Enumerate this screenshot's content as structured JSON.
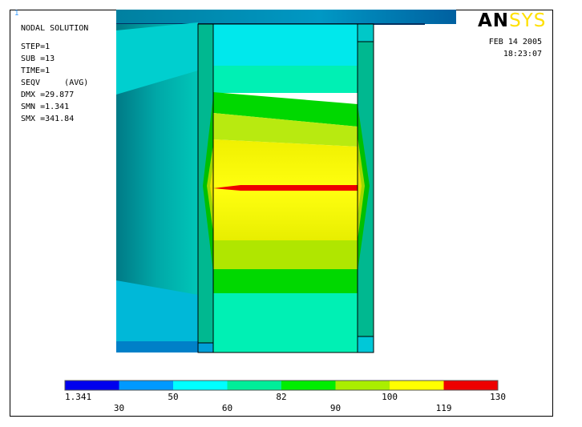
{
  "window_number": "1",
  "logo": {
    "an": "AN",
    "sys": "SYS"
  },
  "header": {
    "title": "NODAL SOLUTION",
    "step": "STEP=1",
    "sub": "SUB =13",
    "time": "TIME=1",
    "seqv": "SEQV     (AVG)",
    "dmx": "DMX =29.877",
    "smn": "SMN =1.341",
    "smx": "SMX =341.84"
  },
  "date": "FEB 14 2005",
  "time_of_day": "18:23:07",
  "legend": {
    "colors": [
      "#0000ee",
      "#0099ff",
      "#00ffff",
      "#00ee99",
      "#00ee00",
      "#aaee00",
      "#ffff00",
      "#ee0000"
    ],
    "top_labels": [
      "1.341",
      "50",
      "82",
      "100",
      "130"
    ],
    "bottom_labels": [
      "30",
      "60",
      "90",
      "119"
    ]
  },
  "colors": {
    "cyan": "#00e0ea",
    "teal": "#00c0a0",
    "aqua_green": "#00f2b4",
    "green": "#00d000",
    "yellow_green": "#b8ea00",
    "yellow": "#f2f200",
    "red": "#ee0000"
  }
}
